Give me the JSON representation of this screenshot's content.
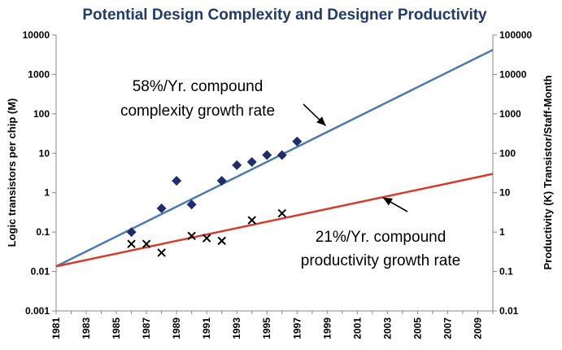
{
  "chart_data": {
    "type": "scatter",
    "title": "Potential Design Complexity and Designer Productivity",
    "ylabel": "Logic transistors per chip (M)",
    "y2label": "Productivity (K) Transistor/Staff-Month",
    "xlim": [
      1981,
      2010
    ],
    "ylim": [
      0.001,
      10000
    ],
    "y2lim": [
      0.01,
      100000
    ],
    "yscale": "log",
    "y2scale": "log",
    "grid": false,
    "x_ticks": [
      "1981",
      "1983",
      "1985",
      "1987",
      "1989",
      "1991",
      "1993",
      "1995",
      "1997",
      "1999",
      "2001",
      "2003",
      "2005",
      "2007",
      "2009"
    ],
    "y_ticks": [
      "0.001",
      "0.01",
      "0.1",
      "1",
      "10",
      "100",
      "1000",
      "10000"
    ],
    "y2_ticks": [
      "0.01",
      "0.1",
      "1",
      "10",
      "100",
      "1000",
      "10000",
      "100000"
    ],
    "series": [
      {
        "name": "58%/Yr. compound complexity growth rate",
        "kind": "line",
        "axis": "left",
        "color": "#4a7ab5",
        "x": [
          1981,
          2010
        ],
        "y": [
          0.0135,
          4200
        ]
      },
      {
        "name": "21%/Yr. compound productivity growth rate",
        "kind": "line",
        "axis": "right",
        "color": "#d83a2a",
        "x": [
          1981,
          2010
        ],
        "y": [
          0.135,
          30
        ]
      },
      {
        "kind": "scatter",
        "marker": "diamond",
        "axis": "left",
        "color": "#1f2e6b",
        "x": [
          1986,
          1988,
          1989,
          1990,
          1992,
          1993,
          1994,
          1995,
          1996,
          1997
        ],
        "y": [
          0.1,
          0.4,
          2,
          0.5,
          2,
          5,
          6,
          9,
          9,
          20
        ]
      },
      {
        "kind": "scatter",
        "marker": "x",
        "axis": "right",
        "color": "#000000",
        "x": [
          1986,
          1987,
          1988,
          1990,
          1991,
          1992,
          1994,
          1996
        ],
        "y": [
          0.5,
          0.5,
          0.3,
          0.8,
          0.7,
          0.6,
          2,
          3
        ]
      }
    ],
    "annotations": [
      {
        "lines": [
          "58%/Yr. compound",
          "complexity growth rate"
        ],
        "arrow_to": [
          1998.9,
          50
        ]
      },
      {
        "lines": [
          "21%/Yr. compound",
          "productivity growth rate"
        ],
        "arrow_to": [
          2002.7,
          0.75
        ]
      }
    ]
  }
}
